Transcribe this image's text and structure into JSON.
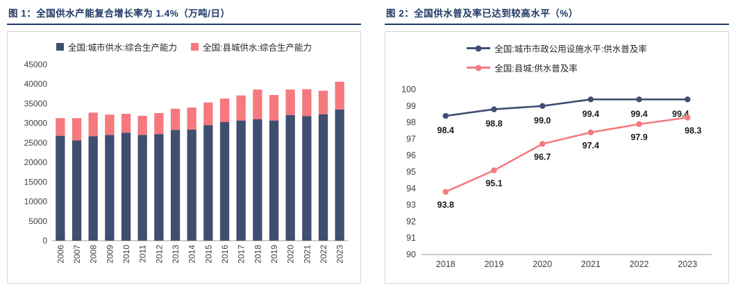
{
  "figures": [
    {
      "title": "图 1：全国供水产能复合增长率为 1.4%（万吨/日）"
    },
    {
      "title": "图 2：全国供水普及率已达到较高水平（%）"
    }
  ],
  "colors": {
    "title": "#1f3864",
    "navy": "#3e4f70",
    "pink": "#f5797e",
    "axis": "#9d9d9d",
    "tick_label": "#404040",
    "data_label": "#1a1a1a",
    "panel_border": "#d9d9d9"
  },
  "chart_data": [
    {
      "type": "bar",
      "stacked": true,
      "title": "全国供水产能复合增长率为 1.4%（万吨/日）",
      "categories": [
        "2006",
        "2007",
        "2008",
        "2009",
        "2010",
        "2011",
        "2012",
        "2013",
        "2014",
        "2015",
        "2016",
        "2017",
        "2018",
        "2019",
        "2020",
        "2021",
        "2022",
        "2023"
      ],
      "series": [
        {
          "name": "全国:城市供水:综合生产能力",
          "color": "#3e4f70",
          "values": [
            26800,
            25600,
            26700,
            27000,
            27600,
            27000,
            27200,
            28300,
            28400,
            29500,
            30300,
            30700,
            31000,
            30700,
            32100,
            31800,
            32300,
            33500
          ]
        },
        {
          "name": "全国:县城供水:综合生产能力",
          "color": "#f5797e",
          "values": [
            4500,
            5700,
            6000,
            5200,
            4800,
            4900,
            5400,
            5400,
            5600,
            5800,
            6000,
            6400,
            7600,
            6500,
            6500,
            6900,
            6000,
            7100
          ]
        }
      ],
      "ylim": [
        0,
        45000
      ],
      "ytick": 5000,
      "grid": false,
      "legend_position": "top",
      "xlabel": "",
      "ylabel": ""
    },
    {
      "type": "line",
      "title": "全国供水普及率已达到较高水平（%）",
      "categories": [
        "2018",
        "2019",
        "2020",
        "2021",
        "2022",
        "2023"
      ],
      "series": [
        {
          "name": "全国:城市市政公用设施水平:供水普及率",
          "color": "#3e4f70",
          "values": [
            98.4,
            98.8,
            99.0,
            99.4,
            99.4,
            99.4
          ]
        },
        {
          "name": "全国:县城:供水普及率",
          "color": "#f5797e",
          "values": [
            93.8,
            95.1,
            96.7,
            97.4,
            97.9,
            98.3
          ]
        }
      ],
      "ylim": [
        90,
        100
      ],
      "ytick": 1,
      "grid": false,
      "data_labels": true,
      "legend_position": "top",
      "xlabel": "",
      "ylabel": ""
    }
  ]
}
